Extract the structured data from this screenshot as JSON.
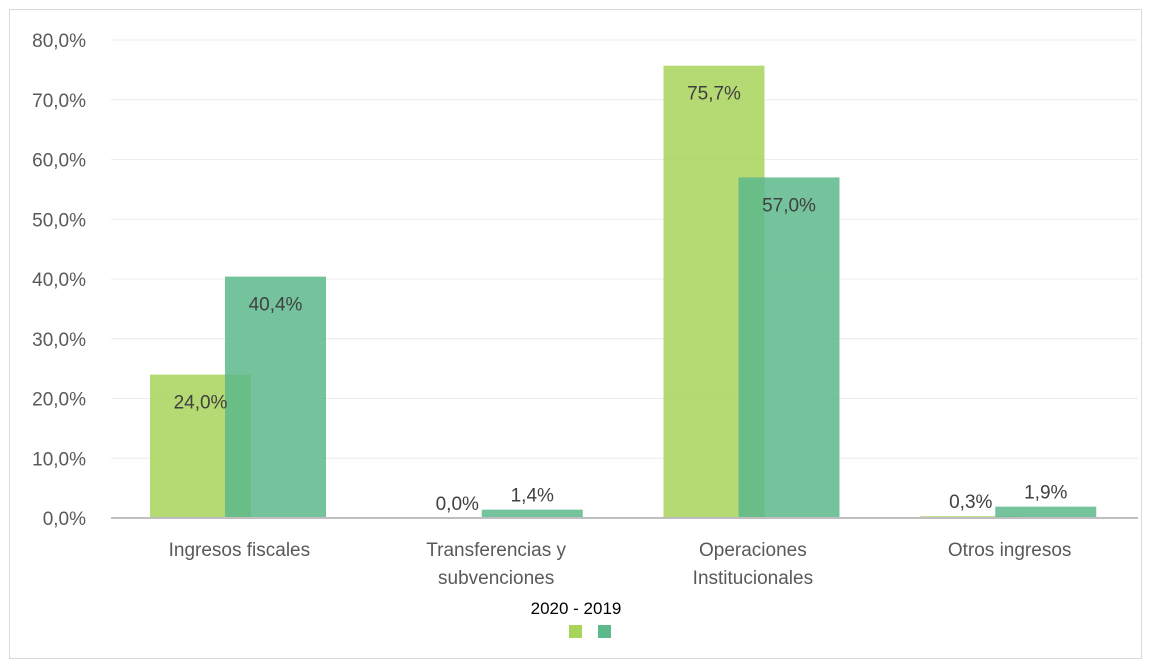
{
  "chart_data": {
    "type": "bar",
    "categories": [
      [
        "Ingresos fiscales"
      ],
      [
        "Transferencias y",
        "subvenciones"
      ],
      [
        "Operaciones",
        "Institucionales"
      ],
      [
        "Otros ingresos"
      ]
    ],
    "series": [
      {
        "values": [
          24.0,
          0.0,
          75.7,
          0.3
        ],
        "labels": [
          "24,0%",
          "0,0%",
          "75,7%",
          "0,3%"
        ],
        "color": "#a9d45a"
      },
      {
        "values": [
          40.4,
          1.4,
          57.0,
          1.9
        ],
        "labels": [
          "40,4%",
          "1,4%",
          "57,0%",
          "1,9%"
        ],
        "color": "#5cb98b"
      }
    ],
    "y_ticks": [
      "0,0%",
      "10,0%",
      "20,0%",
      "30,0%",
      "40,0%",
      "50,0%",
      "60,0%",
      "70,0%",
      "80,0%"
    ],
    "ylim": [
      0,
      80
    ],
    "legend_title": "2020 - 2019",
    "legend_position": "bottom-center",
    "grid": true,
    "colors": {
      "grid": "#ececec",
      "axis": "#bfbfbf"
    }
  }
}
